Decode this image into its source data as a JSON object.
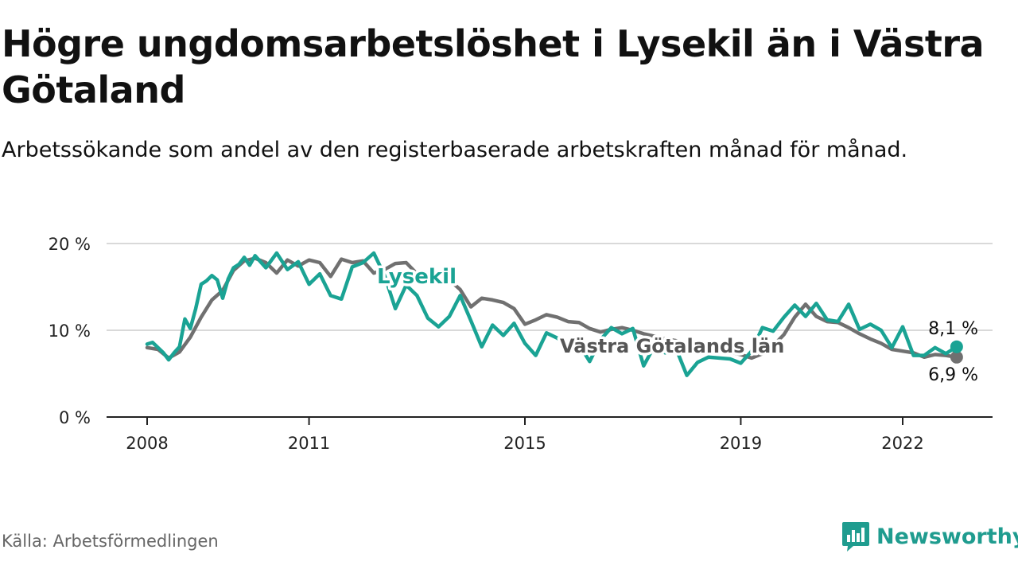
{
  "title": "Högre ungdomsarbetslöshet i Lysekil än i Västra Götaland",
  "subtitle": "Arbetssökande som andel av den registerbaserade arbetskraften månad för månad.",
  "source": "Källa: Arbetsförmedlingen",
  "brand": "Newsworthy",
  "colors": {
    "lysekil": "#1aa394",
    "region": "#707070",
    "grid": "#d9d9d9",
    "axis": "#222222"
  },
  "chart_data": {
    "type": "line",
    "x_unit": "year (decimal)",
    "xlim": [
      2008,
      2023.5
    ],
    "ylim": [
      0,
      20
    ],
    "y_ticks": [
      0,
      10,
      20
    ],
    "y_tick_labels": [
      "0 %",
      "10 %",
      "20 %"
    ],
    "x_ticks": [
      2008,
      2011,
      2015,
      2019,
      2022
    ],
    "x_tick_labels": [
      "2008",
      "2011",
      "2015",
      "2019",
      "2022"
    ],
    "series": [
      {
        "name": "Lysekil",
        "label": "Lysekil",
        "end_label": "8,1 %",
        "x": [
          2008.0,
          2008.1,
          2008.2,
          2008.3,
          2008.4,
          2008.5,
          2008.6,
          2008.7,
          2008.8,
          2008.9,
          2009.0,
          2009.1,
          2009.2,
          2009.3,
          2009.4,
          2009.5,
          2009.6,
          2009.7,
          2009.8,
          2009.9,
          2010.0,
          2010.2,
          2010.4,
          2010.6,
          2010.8,
          2011.0,
          2011.2,
          2011.4,
          2011.6,
          2011.8,
          2012.0,
          2012.2,
          2012.4,
          2012.6,
          2012.8,
          2013.0,
          2013.2,
          2013.4,
          2013.6,
          2013.8,
          2014.0,
          2014.2,
          2014.4,
          2014.6,
          2014.8,
          2015.0,
          2015.2,
          2015.4,
          2015.6,
          2015.8,
          2016.0,
          2016.2,
          2016.4,
          2016.6,
          2016.8,
          2017.0,
          2017.2,
          2017.4,
          2017.6,
          2017.8,
          2018.0,
          2018.2,
          2018.4,
          2018.6,
          2018.8,
          2019.0,
          2019.2,
          2019.4,
          2019.6,
          2019.8,
          2020.0,
          2020.2,
          2020.4,
          2020.6,
          2020.8,
          2021.0,
          2021.2,
          2021.4,
          2021.6,
          2021.8,
          2022.0,
          2022.2,
          2022.4,
          2022.6,
          2022.8,
          2023.0
        ],
        "values": [
          8.4,
          8.6,
          8.0,
          7.4,
          6.6,
          7.4,
          8.1,
          11.3,
          10.2,
          12.5,
          15.3,
          15.7,
          16.3,
          15.8,
          13.7,
          15.9,
          17.2,
          17.6,
          18.4,
          17.5,
          18.6,
          17.2,
          18.9,
          17.0,
          17.9,
          15.3,
          16.5,
          14.0,
          13.6,
          17.3,
          17.8,
          18.9,
          16.3,
          12.5,
          15.2,
          14.0,
          11.4,
          10.4,
          11.6,
          14.0,
          11.1,
          8.1,
          10.6,
          9.4,
          10.8,
          8.5,
          7.1,
          9.7,
          9.1,
          8.3,
          8.4,
          6.4,
          8.9,
          10.3,
          9.6,
          10.2,
          5.9,
          8.2,
          7.4,
          7.9,
          4.8,
          6.3,
          6.9,
          6.8,
          6.7,
          6.2,
          7.6,
          10.3,
          9.9,
          11.5,
          12.9,
          11.6,
          13.1,
          11.2,
          11.0,
          13.0,
          10.1,
          10.7,
          10.0,
          8.0,
          10.4,
          7.1,
          7.1,
          8.0,
          7.3,
          8.1
        ]
      },
      {
        "name": "Västra Götalands län",
        "label": "Västra Götalands län",
        "end_label": "6,9 %",
        "x": [
          2008.0,
          2008.2,
          2008.4,
          2008.6,
          2008.8,
          2009.0,
          2009.2,
          2009.4,
          2009.6,
          2009.8,
          2010.0,
          2010.2,
          2010.4,
          2010.6,
          2010.8,
          2011.0,
          2011.2,
          2011.4,
          2011.6,
          2011.8,
          2012.0,
          2012.2,
          2012.4,
          2012.6,
          2012.8,
          2013.0,
          2013.2,
          2013.4,
          2013.6,
          2013.8,
          2014.0,
          2014.2,
          2014.4,
          2014.6,
          2014.8,
          2015.0,
          2015.2,
          2015.4,
          2015.6,
          2015.8,
          2016.0,
          2016.2,
          2016.4,
          2016.6,
          2016.8,
          2017.0,
          2017.2,
          2017.4,
          2017.6,
          2017.8,
          2018.0,
          2018.2,
          2018.4,
          2018.6,
          2018.8,
          2019.0,
          2019.2,
          2019.4,
          2019.6,
          2019.8,
          2020.0,
          2020.2,
          2020.4,
          2020.6,
          2020.8,
          2021.0,
          2021.2,
          2021.4,
          2021.6,
          2021.8,
          2022.0,
          2022.2,
          2022.4,
          2022.6,
          2022.8,
          2023.0
        ],
        "values": [
          8.0,
          7.8,
          6.8,
          7.5,
          9.2,
          11.5,
          13.5,
          14.6,
          16.9,
          18.0,
          18.3,
          17.8,
          16.6,
          18.1,
          17.4,
          18.1,
          17.8,
          16.2,
          18.2,
          17.8,
          18.0,
          16.6,
          17.0,
          17.7,
          17.8,
          16.5,
          16.5,
          15.7,
          15.8,
          14.7,
          12.7,
          13.7,
          13.5,
          13.2,
          12.5,
          10.7,
          11.2,
          11.8,
          11.5,
          11.0,
          10.9,
          10.2,
          9.8,
          10.1,
          10.3,
          10.0,
          9.6,
          9.3,
          9.0,
          8.8,
          8.4,
          7.9,
          7.4,
          7.6,
          7.5,
          7.2,
          6.8,
          7.3,
          8.2,
          9.5,
          11.5,
          13.0,
          11.6,
          11.0,
          10.9,
          10.3,
          9.6,
          9.0,
          8.5,
          7.8,
          7.6,
          7.4,
          6.9,
          7.2,
          7.1,
          6.9
        ]
      }
    ]
  }
}
